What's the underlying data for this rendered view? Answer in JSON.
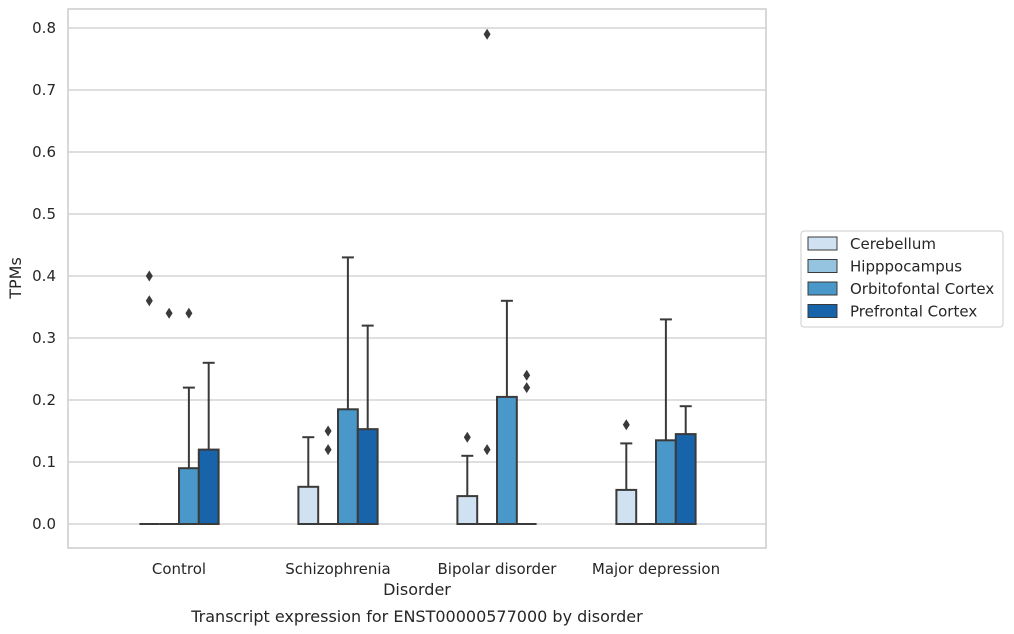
{
  "chart_data": {
    "type": "box",
    "caption": "Transcript expression for ENST00000577000 by disorder",
    "xlabel": "Disorder",
    "ylabel": "TPMs",
    "ylim": [
      -0.04,
      0.83
    ],
    "yticks": [
      "0.0",
      "0.1",
      "0.2",
      "0.3",
      "0.4",
      "0.5",
      "0.6",
      "0.7",
      "0.8"
    ],
    "grid": true,
    "legend_position": "right",
    "categories": [
      "Control",
      "Schizophrenia",
      "Bipolar disorder",
      "Major depression"
    ],
    "series": [
      {
        "name": "Cerebellum",
        "color": "#d0e1f2",
        "boxes": [
          {
            "q1": 0,
            "median": 0,
            "q3": 0,
            "whisker_low": 0,
            "whisker_high": 0,
            "outliers": [
              0.36,
              0.4
            ]
          },
          {
            "q1": 0,
            "median": 0,
            "q3": 0.06,
            "whisker_low": 0,
            "whisker_high": 0.14,
            "outliers": []
          },
          {
            "q1": 0,
            "median": 0,
            "q3": 0.045,
            "whisker_low": 0,
            "whisker_high": 0.11,
            "outliers": [
              0.14
            ]
          },
          {
            "q1": 0,
            "median": 0,
            "q3": 0.055,
            "whisker_low": 0,
            "whisker_high": 0.13,
            "outliers": [
              0.16
            ]
          }
        ]
      },
      {
        "name": "Hipppocampus",
        "color": "#94c4df",
        "boxes": [
          {
            "q1": 0,
            "median": 0,
            "q3": 0,
            "whisker_low": 0,
            "whisker_high": 0,
            "outliers": [
              0.34
            ]
          },
          {
            "q1": 0,
            "median": 0,
            "q3": 0,
            "whisker_low": 0,
            "whisker_high": 0,
            "outliers": [
              0.12,
              0.15
            ]
          },
          {
            "q1": 0,
            "median": 0,
            "q3": 0,
            "whisker_low": 0,
            "whisker_high": 0,
            "outliers": [
              0.12,
              0.79
            ]
          },
          {
            "q1": 0,
            "median": 0,
            "q3": 0,
            "whisker_low": 0,
            "whisker_high": 0,
            "outliers": []
          }
        ]
      },
      {
        "name": "Orbitofontal Cortex",
        "color": "#4a98c9",
        "boxes": [
          {
            "q1": 0,
            "median": 0,
            "q3": 0.09,
            "whisker_low": 0,
            "whisker_high": 0.22,
            "outliers": [
              0.34
            ]
          },
          {
            "q1": 0,
            "median": 0,
            "q3": 0.185,
            "whisker_low": 0,
            "whisker_high": 0.43,
            "outliers": []
          },
          {
            "q1": 0,
            "median": 0,
            "q3": 0.205,
            "whisker_low": 0,
            "whisker_high": 0.36,
            "outliers": []
          },
          {
            "q1": 0,
            "median": 0,
            "q3": 0.135,
            "whisker_low": 0,
            "whisker_high": 0.33,
            "outliers": []
          }
        ]
      },
      {
        "name": "Prefrontal Cortex",
        "color": "#1764ab",
        "boxes": [
          {
            "q1": 0,
            "median": 0,
            "q3": 0.12,
            "whisker_low": 0,
            "whisker_high": 0.26,
            "outliers": []
          },
          {
            "q1": 0,
            "median": 0,
            "q3": 0.153,
            "whisker_low": 0,
            "whisker_high": 0.32,
            "outliers": []
          },
          {
            "q1": 0,
            "median": 0,
            "q3": 0,
            "whisker_low": 0,
            "whisker_high": 0,
            "outliers": [
              0.22,
              0.24
            ]
          },
          {
            "q1": 0,
            "median": 0,
            "q3": 0.145,
            "whisker_low": 0,
            "whisker_high": 0.19,
            "outliers": []
          }
        ]
      }
    ]
  }
}
